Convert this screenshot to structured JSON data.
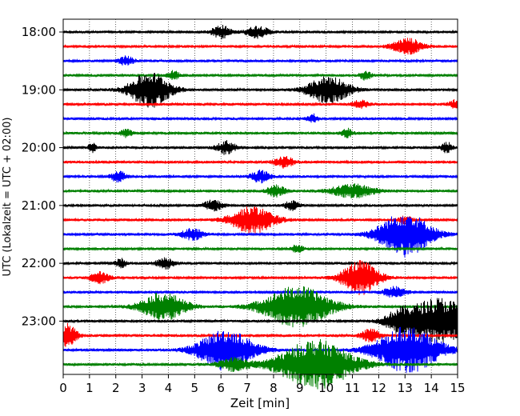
{
  "chart_data": {
    "type": "line",
    "title": "",
    "xlabel": "Zeit  [min]",
    "ylabel": "UTC (Lokalzeit = UTC + 02:00)",
    "xlim": [
      0,
      15
    ],
    "x_ticks": [
      "0",
      "1",
      "2",
      "3",
      "4",
      "5",
      "6",
      "7",
      "8",
      "9",
      "10",
      "11",
      "12",
      "13",
      "14",
      "15"
    ],
    "y_ticks": [
      "18:00",
      "19:00",
      "20:00",
      "21:00",
      "22:00",
      "23:00"
    ],
    "grid": "vertical dotted lines at each minute",
    "trace_interval_min": 15,
    "colors": [
      "#000000",
      "#ff0000",
      "#0000ff",
      "#008000"
    ],
    "traces": [
      {
        "start": "18:00",
        "color": "#000000",
        "bursts": [
          [
            6.0,
            0.25,
            0.45
          ],
          [
            7.4,
            0.3,
            0.4
          ]
        ]
      },
      {
        "start": "18:15",
        "color": "#ff0000",
        "bursts": [
          [
            13.1,
            0.4,
            0.55
          ]
        ]
      },
      {
        "start": "18:30",
        "color": "#0000ff",
        "bursts": [
          [
            2.4,
            0.2,
            0.3
          ]
        ]
      },
      {
        "start": "18:45",
        "color": "#008000",
        "bursts": [
          [
            4.2,
            0.15,
            0.3
          ],
          [
            11.5,
            0.15,
            0.3
          ]
        ]
      },
      {
        "start": "19:00",
        "color": "#000000",
        "bursts": [
          [
            3.3,
            0.55,
            1.2
          ],
          [
            10.1,
            0.55,
            0.95
          ]
        ]
      },
      {
        "start": "19:15",
        "color": "#ff0000",
        "bursts": [
          [
            11.3,
            0.2,
            0.3
          ],
          [
            15.0,
            0.2,
            0.35
          ]
        ]
      },
      {
        "start": "19:30",
        "color": "#0000ff",
        "bursts": [
          [
            9.5,
            0.15,
            0.3
          ]
        ]
      },
      {
        "start": "19:45",
        "color": "#008000",
        "bursts": [
          [
            2.4,
            0.15,
            0.25
          ],
          [
            10.8,
            0.15,
            0.3
          ]
        ]
      },
      {
        "start": "20:00",
        "color": "#000000",
        "bursts": [
          [
            1.1,
            0.1,
            0.35
          ],
          [
            6.2,
            0.25,
            0.45
          ],
          [
            14.6,
            0.15,
            0.35
          ]
        ]
      },
      {
        "start": "20:15",
        "color": "#ff0000",
        "bursts": [
          [
            8.4,
            0.25,
            0.4
          ]
        ]
      },
      {
        "start": "20:30",
        "color": "#0000ff",
        "bursts": [
          [
            2.1,
            0.2,
            0.4
          ],
          [
            7.5,
            0.25,
            0.4
          ]
        ]
      },
      {
        "start": "20:45",
        "color": "#008000",
        "bursts": [
          [
            8.1,
            0.25,
            0.4
          ],
          [
            11.0,
            0.6,
            0.45
          ]
        ]
      },
      {
        "start": "21:00",
        "color": "#000000",
        "bursts": [
          [
            5.7,
            0.25,
            0.35
          ],
          [
            8.7,
            0.2,
            0.3
          ]
        ]
      },
      {
        "start": "21:15",
        "color": "#ff0000",
        "bursts": [
          [
            7.2,
            0.6,
            0.9
          ],
          [
            13.0,
            0.2,
            0.25
          ]
        ]
      },
      {
        "start": "21:30",
        "color": "#0000ff",
        "bursts": [
          [
            4.9,
            0.3,
            0.4
          ],
          [
            13.0,
            0.7,
            1.55
          ]
        ]
      },
      {
        "start": "21:45",
        "color": "#008000",
        "bursts": [
          [
            8.9,
            0.15,
            0.3
          ]
        ]
      },
      {
        "start": "22:00",
        "color": "#000000",
        "bursts": [
          [
            2.2,
            0.15,
            0.3
          ],
          [
            3.9,
            0.25,
            0.35
          ]
        ]
      },
      {
        "start": "22:15",
        "color": "#ff0000",
        "bursts": [
          [
            1.4,
            0.25,
            0.4
          ],
          [
            11.3,
            0.5,
            1.15
          ]
        ]
      },
      {
        "start": "22:30",
        "color": "#0000ff",
        "bursts": [
          [
            12.6,
            0.3,
            0.35
          ]
        ]
      },
      {
        "start": "22:45",
        "color": "#008000",
        "bursts": [
          [
            3.8,
            0.6,
            0.95
          ],
          [
            8.9,
            0.9,
            1.4
          ]
        ]
      },
      {
        "start": "23:00",
        "color": "#000000",
        "bursts": [
          [
            14.3,
            0.9,
            1.6
          ],
          [
            12.8,
            0.4,
            0.55
          ]
        ]
      },
      {
        "start": "23:15",
        "color": "#ff0000",
        "bursts": [
          [
            0.15,
            0.25,
            0.8
          ],
          [
            11.7,
            0.25,
            0.45
          ]
        ]
      },
      {
        "start": "23:30",
        "color": "#0000ff",
        "bursts": [
          [
            6.2,
            0.75,
            1.4
          ],
          [
            13.1,
            0.85,
            1.6
          ]
        ]
      },
      {
        "start": "23:45",
        "color": "#008000",
        "bursts": [
          [
            9.6,
            1.0,
            1.7
          ],
          [
            6.5,
            0.4,
            0.45
          ]
        ]
      }
    ]
  }
}
